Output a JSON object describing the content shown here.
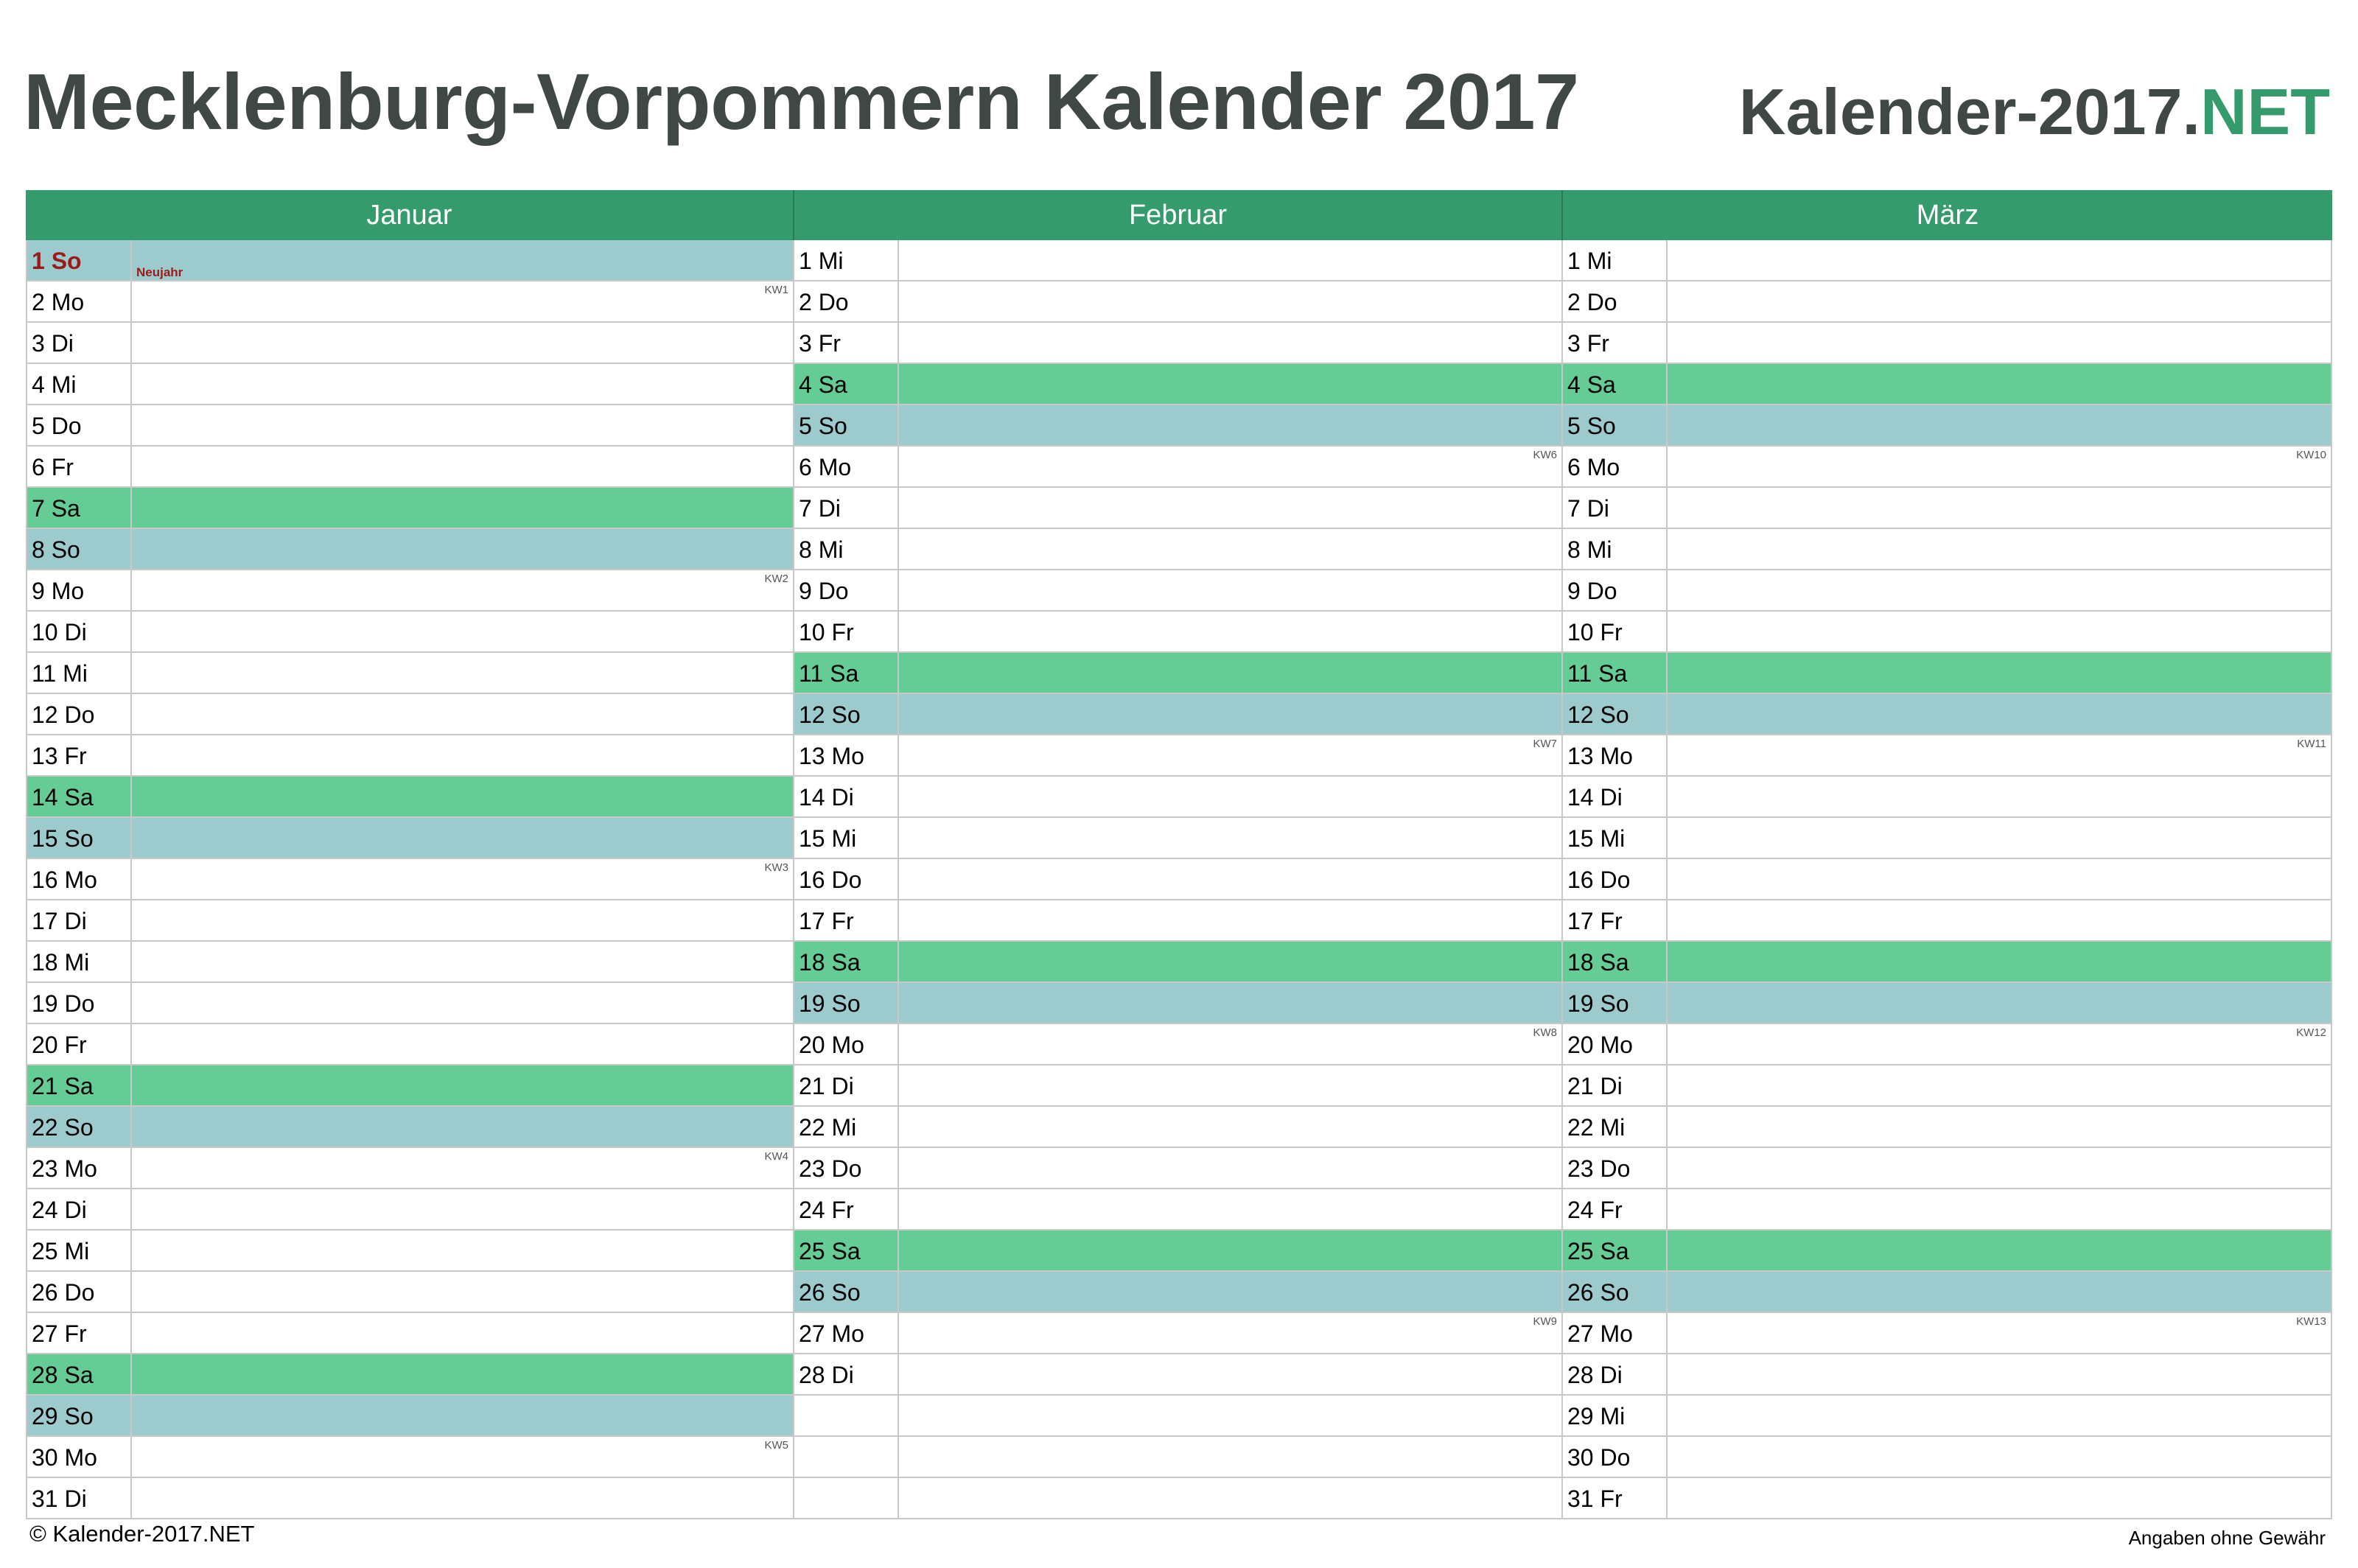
{
  "header": {
    "title": "Mecklenburg-Vorpommern Kalender 2017",
    "brand_main": "Kalender-2017.",
    "brand_suffix": "NET"
  },
  "colors": {
    "header_green": "#359b6d",
    "saturday": "#66cc96",
    "sunday": "#9dcbcd",
    "holiday_text": "#9a1b1b",
    "title_gray": "#404845"
  },
  "months": [
    {
      "name": "Januar",
      "days": [
        {
          "label": "1 So",
          "type": "sun",
          "holiday": "Neujahr"
        },
        {
          "label": "2 Mo",
          "type": "work",
          "kw": "KW1"
        },
        {
          "label": "3 Di",
          "type": "work"
        },
        {
          "label": "4 Mi",
          "type": "work"
        },
        {
          "label": "5 Do",
          "type": "work"
        },
        {
          "label": "6 Fr",
          "type": "work"
        },
        {
          "label": "7 Sa",
          "type": "sat"
        },
        {
          "label": "8 So",
          "type": "sun"
        },
        {
          "label": "9 Mo",
          "type": "work",
          "kw": "KW2"
        },
        {
          "label": "10 Di",
          "type": "work"
        },
        {
          "label": "11 Mi",
          "type": "work"
        },
        {
          "label": "12 Do",
          "type": "work"
        },
        {
          "label": "13 Fr",
          "type": "work"
        },
        {
          "label": "14 Sa",
          "type": "sat"
        },
        {
          "label": "15 So",
          "type": "sun"
        },
        {
          "label": "16 Mo",
          "type": "work",
          "kw": "KW3"
        },
        {
          "label": "17 Di",
          "type": "work"
        },
        {
          "label": "18 Mi",
          "type": "work"
        },
        {
          "label": "19 Do",
          "type": "work"
        },
        {
          "label": "20 Fr",
          "type": "work"
        },
        {
          "label": "21 Sa",
          "type": "sat"
        },
        {
          "label": "22 So",
          "type": "sun"
        },
        {
          "label": "23 Mo",
          "type": "work",
          "kw": "KW4"
        },
        {
          "label": "24 Di",
          "type": "work"
        },
        {
          "label": "25 Mi",
          "type": "work"
        },
        {
          "label": "26 Do",
          "type": "work"
        },
        {
          "label": "27 Fr",
          "type": "work"
        },
        {
          "label": "28 Sa",
          "type": "sat"
        },
        {
          "label": "29 So",
          "type": "sun"
        },
        {
          "label": "30 Mo",
          "type": "work",
          "kw": "KW5"
        },
        {
          "label": "31 Di",
          "type": "work"
        }
      ]
    },
    {
      "name": "Februar",
      "days": [
        {
          "label": "1 Mi",
          "type": "work"
        },
        {
          "label": "2 Do",
          "type": "work"
        },
        {
          "label": "3 Fr",
          "type": "work"
        },
        {
          "label": "4 Sa",
          "type": "sat"
        },
        {
          "label": "5 So",
          "type": "sun"
        },
        {
          "label": "6 Mo",
          "type": "work",
          "kw": "KW6"
        },
        {
          "label": "7 Di",
          "type": "work"
        },
        {
          "label": "8 Mi",
          "type": "work"
        },
        {
          "label": "9 Do",
          "type": "work"
        },
        {
          "label": "10 Fr",
          "type": "work"
        },
        {
          "label": "11 Sa",
          "type": "sat"
        },
        {
          "label": "12 So",
          "type": "sun"
        },
        {
          "label": "13 Mo",
          "type": "work",
          "kw": "KW7"
        },
        {
          "label": "14 Di",
          "type": "work"
        },
        {
          "label": "15 Mi",
          "type": "work"
        },
        {
          "label": "16 Do",
          "type": "work"
        },
        {
          "label": "17 Fr",
          "type": "work"
        },
        {
          "label": "18 Sa",
          "type": "sat"
        },
        {
          "label": "19 So",
          "type": "sun"
        },
        {
          "label": "20 Mo",
          "type": "work",
          "kw": "KW8"
        },
        {
          "label": "21 Di",
          "type": "work"
        },
        {
          "label": "22 Mi",
          "type": "work"
        },
        {
          "label": "23 Do",
          "type": "work"
        },
        {
          "label": "24 Fr",
          "type": "work"
        },
        {
          "label": "25 Sa",
          "type": "sat"
        },
        {
          "label": "26 So",
          "type": "sun"
        },
        {
          "label": "27 Mo",
          "type": "work",
          "kw": "KW9"
        },
        {
          "label": "28 Di",
          "type": "work"
        },
        {
          "label": "",
          "type": "empty"
        },
        {
          "label": "",
          "type": "empty"
        },
        {
          "label": "",
          "type": "empty"
        }
      ]
    },
    {
      "name": "März",
      "days": [
        {
          "label": "1 Mi",
          "type": "work"
        },
        {
          "label": "2 Do",
          "type": "work"
        },
        {
          "label": "3 Fr",
          "type": "work"
        },
        {
          "label": "4 Sa",
          "type": "sat"
        },
        {
          "label": "5 So",
          "type": "sun"
        },
        {
          "label": "6 Mo",
          "type": "work",
          "kw": "KW10"
        },
        {
          "label": "7 Di",
          "type": "work"
        },
        {
          "label": "8 Mi",
          "type": "work"
        },
        {
          "label": "9 Do",
          "type": "work"
        },
        {
          "label": "10 Fr",
          "type": "work"
        },
        {
          "label": "11 Sa",
          "type": "sat"
        },
        {
          "label": "12 So",
          "type": "sun"
        },
        {
          "label": "13 Mo",
          "type": "work",
          "kw": "KW11"
        },
        {
          "label": "14 Di",
          "type": "work"
        },
        {
          "label": "15 Mi",
          "type": "work"
        },
        {
          "label": "16 Do",
          "type": "work"
        },
        {
          "label": "17 Fr",
          "type": "work"
        },
        {
          "label": "18 Sa",
          "type": "sat"
        },
        {
          "label": "19 So",
          "type": "sun"
        },
        {
          "label": "20 Mo",
          "type": "work",
          "kw": "KW12"
        },
        {
          "label": "21 Di",
          "type": "work"
        },
        {
          "label": "22 Mi",
          "type": "work"
        },
        {
          "label": "23 Do",
          "type": "work"
        },
        {
          "label": "24 Fr",
          "type": "work"
        },
        {
          "label": "25 Sa",
          "type": "sat"
        },
        {
          "label": "26 So",
          "type": "sun"
        },
        {
          "label": "27 Mo",
          "type": "work",
          "kw": "KW13"
        },
        {
          "label": "28 Di",
          "type": "work"
        },
        {
          "label": "29 Mi",
          "type": "work"
        },
        {
          "label": "30 Do",
          "type": "work"
        },
        {
          "label": "31 Fr",
          "type": "work"
        }
      ]
    }
  ],
  "footer": {
    "copyright": "© Kalender-2017.NET",
    "disclaimer": "Angaben ohne Gewähr"
  }
}
